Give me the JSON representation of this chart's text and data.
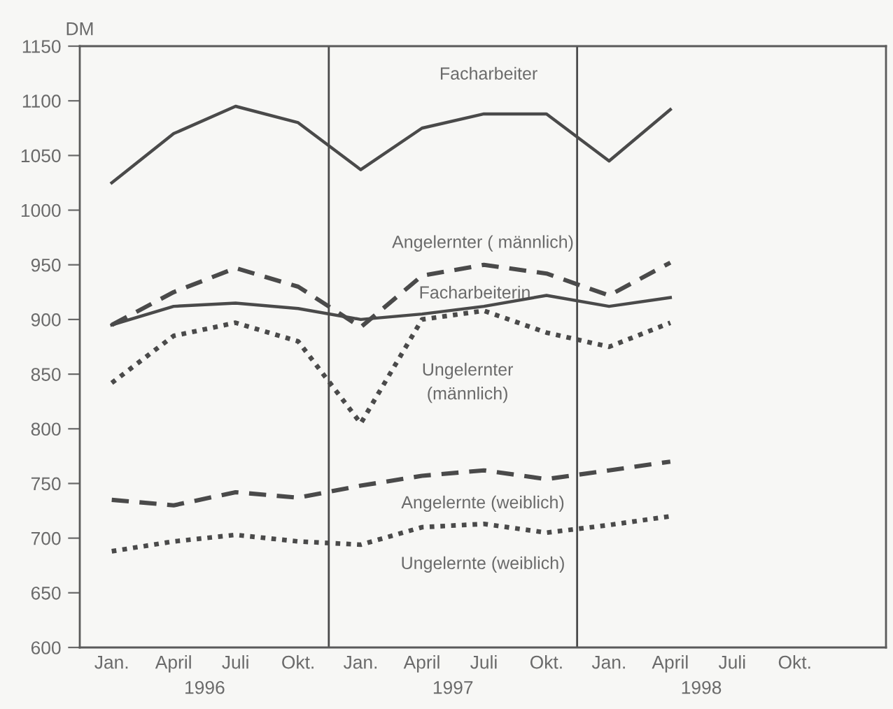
{
  "chart_data": {
    "type": "line",
    "ylabel": "DM",
    "x": [
      "1996-01-01",
      "1996-04-01",
      "1996-07-01",
      "1996-10-01",
      "1997-01-01",
      "1997-04-01",
      "1997-07-01",
      "1997-10-01",
      "1998-01-01",
      "1998-04-01"
    ],
    "xlim": [
      "1995-11-15",
      "1999-02-12"
    ],
    "xticks": [
      {
        "value": "1996-01-01",
        "label": "Jan."
      },
      {
        "value": "1996-04-01",
        "label": "April"
      },
      {
        "value": "1996-07-01",
        "label": "Juli"
      },
      {
        "value": "1996-10-01",
        "label": "Okt."
      },
      {
        "value": "1997-01-01",
        "label": "Jan."
      },
      {
        "value": "1997-04-01",
        "label": "April"
      },
      {
        "value": "1997-07-01",
        "label": "Juli"
      },
      {
        "value": "1997-10-01",
        "label": "Okt."
      },
      {
        "value": "1998-01-01",
        "label": "Jan."
      },
      {
        "value": "1998-04-01",
        "label": "April"
      },
      {
        "value": "1998-07-01",
        "label": "Juli"
      },
      {
        "value": "1998-10-01",
        "label": "Okt."
      }
    ],
    "ylim": [
      600,
      1150
    ],
    "yticks": [
      600,
      650,
      700,
      750,
      800,
      850,
      900,
      950,
      1000,
      1050,
      1100,
      1150
    ],
    "grid": false,
    "legend": false,
    "marker": "none",
    "series": [
      {
        "name": "Facharbeiter",
        "color": "#4a4a4a",
        "line_style": "solid",
        "values": [
          1025,
          1070,
          1095,
          1080,
          1037,
          1075,
          1088,
          1088,
          1045,
          1092
        ]
      },
      {
        "name": "Facharbeiterin",
        "color": "#4a4a4a",
        "line_style": "solid",
        "values": [
          895,
          912,
          915,
          910,
          900,
          905,
          912,
          922,
          912,
          920
        ]
      },
      {
        "name": "Angelernter ( männlich)",
        "color": "#4a4a4a",
        "line_style": "dashed",
        "values": [
          895,
          925,
          947,
          930,
          893,
          940,
          950,
          942,
          922,
          952
        ]
      },
      {
        "name": "Ungelernter\n(männlich)",
        "color": "#4a4a4a",
        "line_style": "dotted",
        "values": [
          842,
          885,
          897,
          880,
          805,
          900,
          908,
          888,
          875,
          897
        ]
      },
      {
        "name": "Angelernte (weiblich)",
        "color": "#4a4a4a",
        "line_style": "dashed",
        "values": [
          735,
          730,
          742,
          737,
          748,
          757,
          762,
          754,
          762,
          770
        ]
      },
      {
        "name": "Ungelernte (weiblich)",
        "color": "#4a4a4a",
        "line_style": "dotted",
        "values": [
          688,
          697,
          703,
          697,
          694,
          710,
          713,
          705,
          712,
          720
        ]
      }
    ],
    "ref_lines": [
      {
        "axis": "x",
        "value": "1996-11-15",
        "color": "#4a4a4a"
      },
      {
        "axis": "x",
        "value": "1997-11-15",
        "color": "#4a4a4a"
      }
    ],
    "annotations": [
      "1996",
      "1997",
      "1998"
    ]
  }
}
